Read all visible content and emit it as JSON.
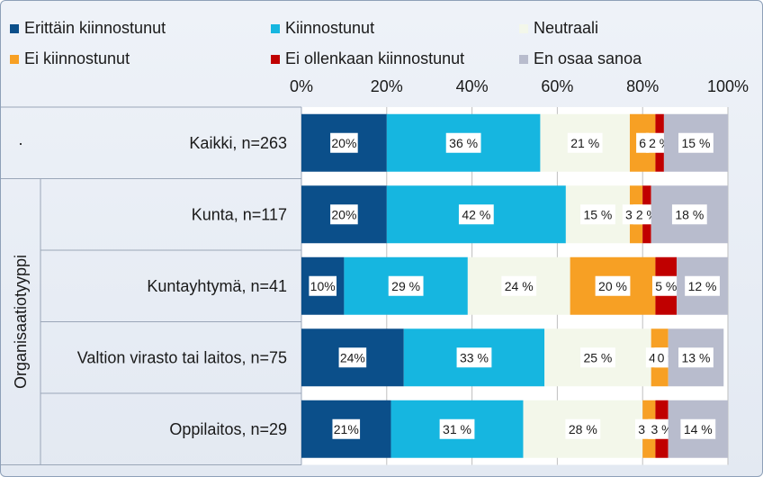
{
  "chart_data": {
    "type": "bar",
    "orientation": "horizontal-stacked-100",
    "legend": [
      "Erittäin kiinnostunut",
      "Kiinnostunut",
      "Neutraali",
      "Ei kiinnostunut",
      "Ei ollenkaan kiinnostunut",
      "En osaa sanoa"
    ],
    "colors": [
      "#0b4f8a",
      "#16b6e0",
      "#f3f7ea",
      "#f7a024",
      "#c00000",
      "#b8bccd"
    ],
    "xticks": [
      "0%",
      "20%",
      "40%",
      "60%",
      "80%",
      "100%"
    ],
    "xlim": [
      0,
      100
    ],
    "group_label": "Organisaatiotyyppi",
    "top_group_label": "·",
    "categories": [
      "Kaikki, n=263",
      "Kunta, n=117",
      "Kuntayhtymä, n=41",
      "Valtion virasto tai laitos, n=75",
      "Oppilaitos, n=29"
    ],
    "values": [
      [
        20,
        36,
        21,
        6,
        2,
        15
      ],
      [
        20,
        42,
        15,
        3,
        2,
        18
      ],
      [
        10,
        29,
        24,
        20,
        5,
        12
      ],
      [
        24,
        33,
        25,
        4,
        0,
        13
      ],
      [
        21,
        31,
        28,
        3,
        3,
        14
      ]
    ],
    "data_labels": [
      [
        "20%",
        "36 %",
        "21 %",
        "6",
        "2 %",
        "15 %"
      ],
      [
        "20%",
        "42 %",
        "15 %",
        "3 %",
        "2 %",
        "18 %"
      ],
      [
        "10%",
        "29 %",
        "24 %",
        "20 %",
        "5 %",
        "12 %"
      ],
      [
        "24%",
        "33 %",
        "25 %",
        "4 %",
        "0 %",
        "13 %"
      ],
      [
        "21%",
        "31 %",
        "28 %",
        "3 %",
        "3 %",
        "14 %"
      ]
    ]
  }
}
